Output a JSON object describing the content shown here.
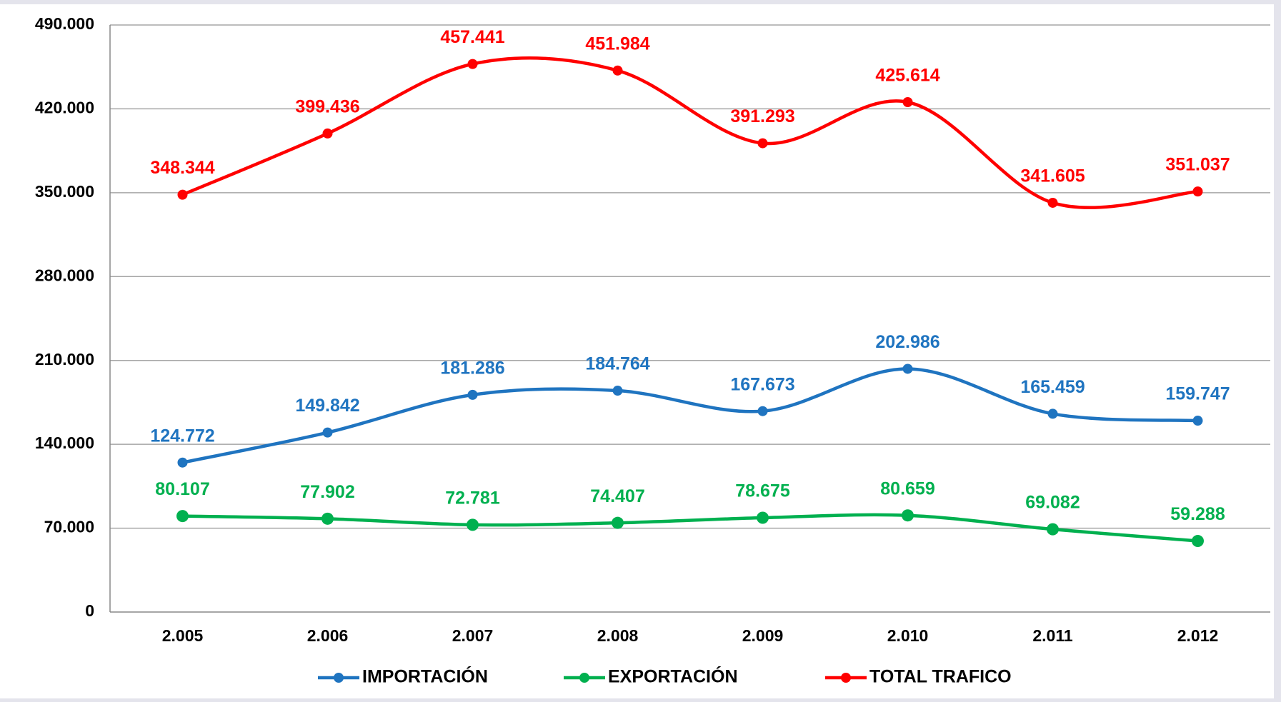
{
  "chart_data": {
    "type": "line",
    "categories": [
      "2.005",
      "2.006",
      "2.007",
      "2.008",
      "2.009",
      "2.010",
      "2.011",
      "2.012"
    ],
    "series": [
      {
        "name": "IMPORTACIÓN",
        "color": "#1f74c0",
        "values": [
          124772,
          149842,
          181286,
          184764,
          167673,
          202986,
          165459,
          159747
        ],
        "value_labels": [
          "124.772",
          "149.842",
          "181.286",
          "184.764",
          "167.673",
          "202.986",
          "165.459",
          "159.747"
        ]
      },
      {
        "name": "EXPORTACIÓN",
        "color": "#00b04f",
        "values": [
          80107,
          77902,
          72781,
          74407,
          78675,
          80659,
          69082,
          59288
        ],
        "value_labels": [
          "80.107",
          "77.902",
          "72.781",
          "74.407",
          "78.675",
          "80.659",
          "69.082",
          "59.288"
        ]
      },
      {
        "name": "TOTAL TRAFICO",
        "color": "#ff0000",
        "values": [
          348344,
          399436,
          457441,
          451984,
          391293,
          425614,
          341605,
          351037
        ],
        "value_labels": [
          "348.344",
          "399.436",
          "457.441",
          "451.984",
          "391.293",
          "425.614",
          "341.605",
          "351.037"
        ]
      }
    ],
    "ylim": [
      0,
      490000
    ],
    "yticks": [
      0,
      {
        "value": 70000,
        "label": "70.000"
      },
      {
        "value": 140000,
        "label": "140.000"
      },
      {
        "value": 210000,
        "label": "210.000"
      },
      {
        "value": 280000,
        "label": "280.000"
      },
      {
        "value": 350000,
        "label": "350.000"
      },
      {
        "value": 420000,
        "label": "420.000"
      },
      {
        "value": 490000,
        "label": "490.000"
      }
    ],
    "grid": true,
    "smooth": true,
    "legend": "bottom"
  }
}
